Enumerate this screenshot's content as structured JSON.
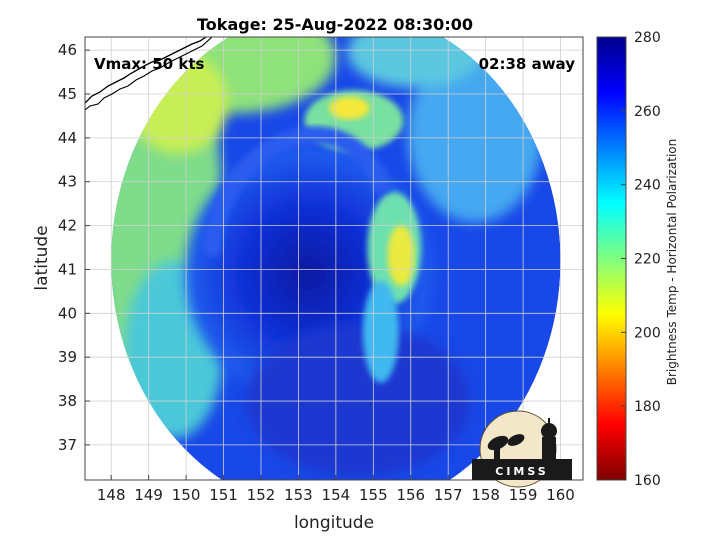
{
  "chart_data": {
    "type": "heatmap",
    "title": "Tokage: 25-Aug-2022 08:30:00",
    "xlabel": "longitude",
    "ylabel": "latitude",
    "xlim": [
      147.3,
      160.6
    ],
    "ylim": [
      36.2,
      46.3
    ],
    "xticks": [
      148,
      149,
      150,
      151,
      152,
      153,
      154,
      155,
      156,
      157,
      158,
      159,
      160
    ],
    "yticks": [
      37,
      38,
      39,
      40,
      41,
      42,
      43,
      44,
      45,
      46
    ],
    "grid": true,
    "colorbar": {
      "label": "Brightness Temp - Horizontal Polarization",
      "range": [
        160,
        280
      ],
      "ticks": [
        160,
        180,
        200,
        220,
        240,
        260,
        280
      ],
      "colormap": [
        "#7f0000",
        "#ff0000",
        "#ffff00",
        "#00ffff",
        "#0000ff",
        "#00008f"
      ]
    },
    "annotations": {
      "vmax": "Vmax: 50 kts",
      "time_offset": "02:38 away"
    },
    "swath": {
      "center_lon": 154.0,
      "center_lat": 41.2,
      "radius_lon": 6.0,
      "radius_lat": 5.8
    },
    "storm_center": {
      "lon": 153.6,
      "lat": 41.4
    },
    "logo_text": "CIMSS"
  }
}
